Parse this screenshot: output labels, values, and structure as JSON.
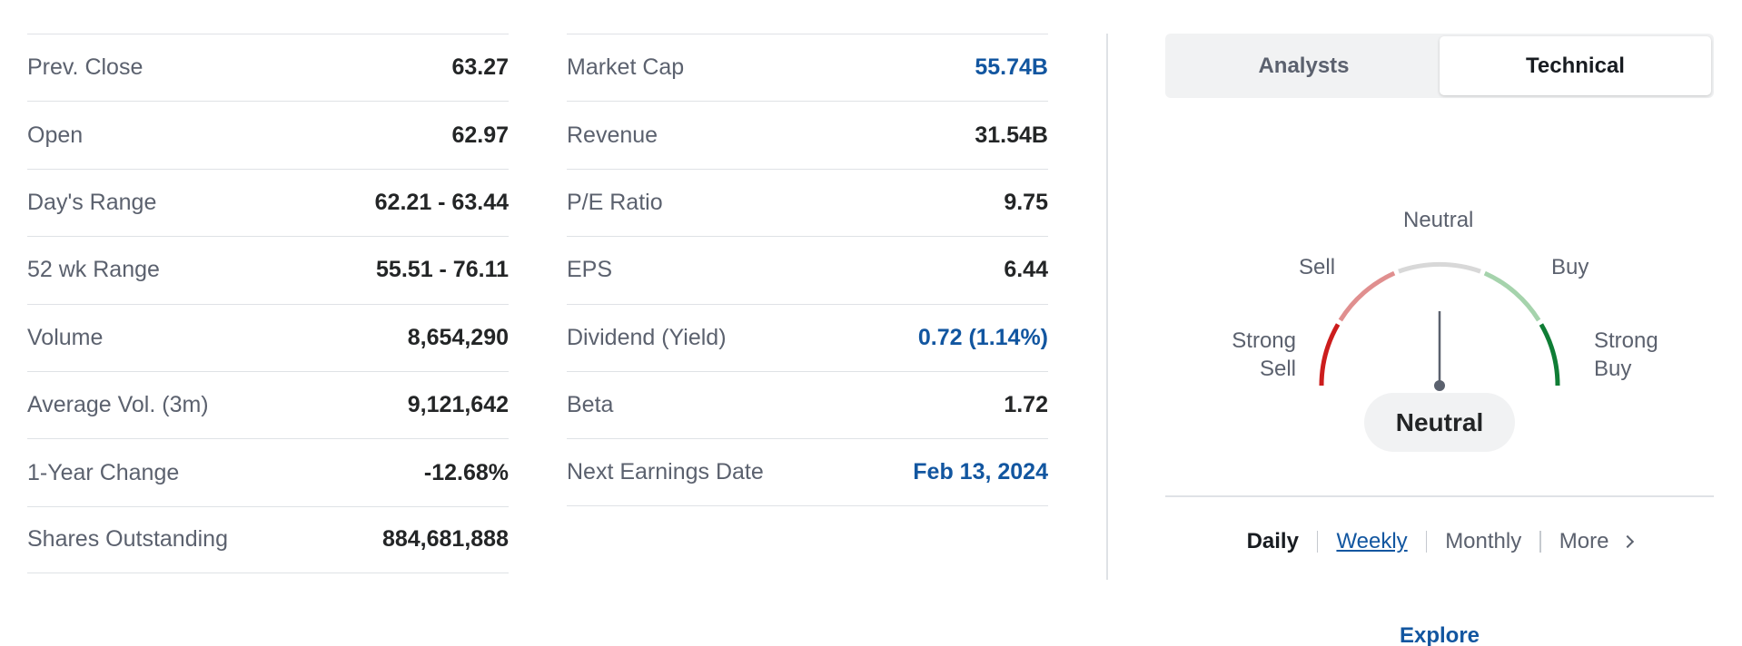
{
  "left_stats": [
    {
      "label": "Prev. Close",
      "value": "63.27"
    },
    {
      "label": "Open",
      "value": "62.97"
    },
    {
      "label": "Day's Range",
      "value": "62.21 - 63.44"
    },
    {
      "label": "52 wk Range",
      "value": "55.51 - 76.11"
    },
    {
      "label": "Volume",
      "value": "8,654,290"
    },
    {
      "label": "Average Vol. (3m)",
      "value": "9,121,642"
    },
    {
      "label": "1-Year Change",
      "value": "-12.68%"
    },
    {
      "label": "Shares Outstanding",
      "value": "884,681,888"
    }
  ],
  "right_stats": [
    {
      "label": "Market Cap",
      "value": "55.74B"
    },
    {
      "label": "Revenue",
      "value": "31.54B"
    },
    {
      "label": "P/E Ratio",
      "value": "9.75"
    },
    {
      "label": "EPS",
      "value": "6.44"
    },
    {
      "label": "Dividend (Yield)",
      "value": "0.72 (1.14%)"
    },
    {
      "label": "Beta",
      "value": "1.72"
    },
    {
      "label": "Next Earnings Date",
      "value": "Feb 13, 2024"
    }
  ],
  "tabs": {
    "analysts": "Analysts",
    "technical": "Technical"
  },
  "gauge": {
    "neutral": "Neutral",
    "sell": "Sell",
    "buy": "Buy",
    "strong_sell_1": "Strong",
    "strong_sell_2": "Sell",
    "strong_buy_1": "Strong",
    "strong_buy_2": "Buy",
    "reading": "Neutral",
    "colors": {
      "strong_sell": "#cc1d1d",
      "sell": "#e08f8f",
      "neutral": "#d8d8d8",
      "buy": "#a5d3ac",
      "strong_buy": "#0f7d35"
    }
  },
  "periods": {
    "daily": "Daily",
    "weekly": "Weekly",
    "monthly": "Monthly",
    "more": "More"
  },
  "explore": "Explore",
  "colors": {
    "link": "#1256a0",
    "muted": "#5b616e",
    "text": "#181c21"
  }
}
